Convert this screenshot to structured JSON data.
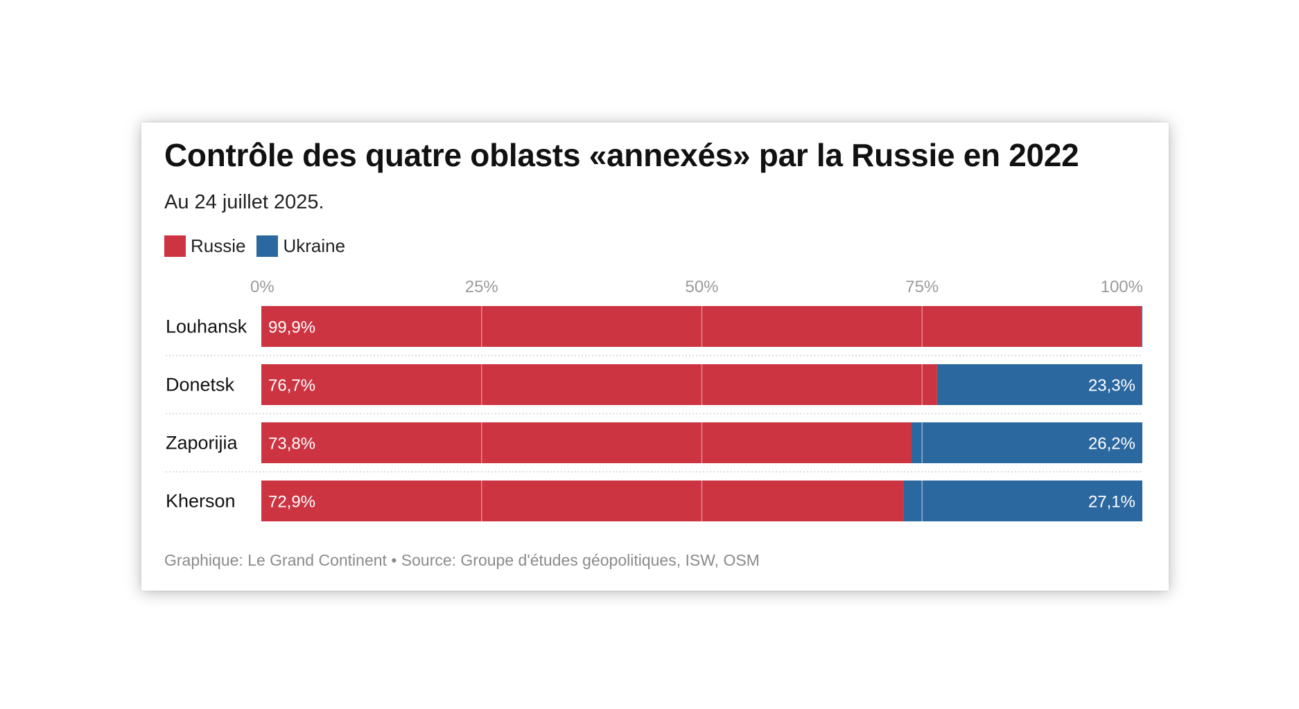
{
  "title": "Contrôle des quatre oblasts «annexés» par la Russie en 2022",
  "subtitle": "Au 24 juillet 2025.",
  "legend": [
    {
      "label": "Russie",
      "color": "#cc3442"
    },
    {
      "label": "Ukraine",
      "color": "#2c68a0"
    }
  ],
  "footer": "Graphique: Le Grand Continent • Source: Groupe d'études géopolitiques, ISW, OSM",
  "colors": {
    "russie": "#cc3442",
    "ukraine": "#2c68a0",
    "tick_text": "#9a9a9a",
    "gridline": "#e48790",
    "gridline_blue": "#8fb0cf"
  },
  "chart_data": {
    "type": "bar",
    "orientation": "horizontal",
    "stacked": true,
    "categories": [
      "Louhansk",
      "Donetsk",
      "Zaporijia",
      "Kherson"
    ],
    "series": [
      {
        "name": "Russie",
        "values": [
          99.9,
          76.7,
          73.8,
          72.9
        ],
        "labels": [
          "99,9%",
          "76,7%",
          "73,8%",
          "72,9%"
        ]
      },
      {
        "name": "Ukraine",
        "values": [
          0.1,
          23.3,
          26.2,
          27.1
        ],
        "labels": [
          "",
          "23,3%",
          "26,2%",
          "27,1%"
        ]
      }
    ],
    "xlim": [
      0,
      100
    ],
    "xticks": [
      0,
      25,
      50,
      75,
      100
    ],
    "xtick_labels": [
      "0%",
      "25%",
      "50%",
      "75%",
      "100%"
    ],
    "axis_position": "top",
    "grid": true,
    "legend_position": "top-left"
  }
}
